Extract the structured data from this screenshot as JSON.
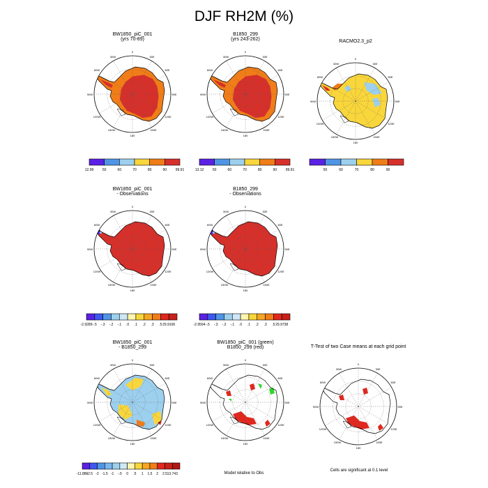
{
  "title": "DJF RH2M (%)",
  "colors": {
    "dark_red": "#d6302b",
    "red": "#e0281f",
    "orange": "#f07d18",
    "yellow": "#f9d63b",
    "light_blue": "#9dd0ee",
    "mid_blue": "#4f95e6",
    "purple": "#5a21e4",
    "green": "#2fd52b"
  },
  "panels": [
    {
      "id": "p1",
      "title": [
        "BW1850_piC_001",
        "(yrs 70-89)"
      ],
      "fill": "climo"
    },
    {
      "id": "p2",
      "title": [
        "B1850_299",
        "(yrs 243-262)"
      ],
      "fill": "climo"
    },
    {
      "id": "p3",
      "title": [
        "RACMO2.3_p2"
      ],
      "fill": "obs"
    },
    {
      "id": "p4",
      "title": [
        "BW1850_piC_001",
        "- Observations"
      ],
      "fill": "bias"
    },
    {
      "id": "p5",
      "title": [
        "B1850_299",
        "- Observations"
      ],
      "fill": "bias"
    },
    {
      "id": "p6",
      "title": [
        "BW1850_piC_001",
        "- B1850_299"
      ],
      "fill": "diff"
    },
    {
      "id": "p7",
      "title": [
        "BW1850_piC_001 (green)",
        "B1850_299 (red)"
      ],
      "fill": "outline"
    },
    {
      "id": "p8",
      "title": [
        "T-Test of two Case means at each grid point"
      ],
      "fill": "outline"
    }
  ],
  "map_labels": {
    "top": "0",
    "left": "90W",
    "right": "90E",
    "bottom": "180",
    "ul30": "30W",
    "ur30": "30E",
    "ul60": "60W",
    "ur60": "60E",
    "ll120": "120W",
    "lr120": "120E",
    "ll150": "150W",
    "lr150": "150E"
  },
  "legends": [
    {
      "id": "l1",
      "labels": [
        "12.99",
        "50",
        "60",
        "70",
        "80",
        "90",
        "99.91"
      ],
      "colors": [
        "#5a21e4",
        "#4f95e6",
        "#9dd0ee",
        "#f9d63b",
        "#f07d18",
        "#d6302b"
      ]
    },
    {
      "id": "l2",
      "labels": [
        "13.12",
        "50",
        "60",
        "70",
        "80",
        "90",
        "99.91"
      ],
      "colors": [
        "#5a21e4",
        "#4f95e6",
        "#9dd0ee",
        "#f9d63b",
        "#f07d18",
        "#d6302b"
      ]
    },
    {
      "id": "l3",
      "labels": [
        "",
        "50",
        "60",
        "70",
        "80",
        "90",
        ""
      ],
      "colors": [
        "#5a21e4",
        "#4f95e6",
        "#9dd0ee",
        "#f9d63b",
        "#f07d18",
        "#d6302b"
      ]
    },
    {
      "id": "l4",
      "labels": [
        "-2.9289",
        "-.5",
        "-.3",
        "-.2",
        "-.1",
        ".0",
        ".1",
        ".2",
        ".3",
        ".5",
        "29.9106"
      ],
      "colors": [
        "#5a21e4",
        "#3d58ee",
        "#4f95e6",
        "#9dd0ee",
        "#cfe8f7",
        "#fff6b0",
        "#f9d63b",
        "#f5a623",
        "#f07d18",
        "#e0281f",
        "#c8211b"
      ]
    },
    {
      "id": "l5",
      "labels": [
        "-2.9594",
        "-.5",
        "-.3",
        "-.2",
        "-.1",
        ".0",
        ".1",
        ".2",
        ".3",
        ".5",
        "29.9738"
      ],
      "colors": [
        "#5a21e4",
        "#3d58ee",
        "#4f95e6",
        "#9dd0ee",
        "#cfe8f7",
        "#fff6b0",
        "#f9d63b",
        "#f5a623",
        "#f07d18",
        "#e0281f",
        "#c8211b"
      ]
    },
    {
      "id": "l6",
      "labels": [
        "-11.886",
        "-2.5",
        "-2",
        "-1.5",
        "-1",
        "-.5",
        "0",
        ".5",
        "1",
        "1.5",
        "2",
        "2.5",
        "13.743"
      ],
      "colors": [
        "#5a21e4",
        "#3d58ee",
        "#4f95e6",
        "#7cb7ee",
        "#9dd0ee",
        "#cfe8f7",
        "#fff6b0",
        "#f9d63b",
        "#f5a623",
        "#f07d18",
        "#e0281f",
        "#c8211b",
        "#b01813"
      ]
    }
  ],
  "footnotes": {
    "model_vs_obs": "Model relative to Obs",
    "significance": "Cells are significant at 0.1 level"
  },
  "chart_data": {
    "type": "heatmap",
    "title": "DJF RH2M (%)",
    "subplots": [
      "BW1850_piC_001 (yrs 70-89)",
      "B1850_299 (yrs 243-262)",
      "RACMO2.3_p2",
      "BW1850_piC_001 - Observations",
      "B1850_299 - Observations",
      "BW1850_piC_001 - B1850_299",
      "BW1850_piC_001 (green) B1850_299 (red)",
      "T-Test of two Case means at each grid point"
    ],
    "colorbars": [
      {
        "min": 12.99,
        "max": 99.91,
        "levels": [
          50,
          60,
          70,
          80,
          90
        ]
      },
      {
        "min": 13.12,
        "max": 99.91,
        "levels": [
          50,
          60,
          70,
          80,
          90
        ]
      },
      {
        "levels": [
          50,
          60,
          70,
          80,
          90
        ]
      },
      {
        "min": -2.9289,
        "max": 29.9106,
        "levels": [
          -0.5,
          -0.3,
          -0.2,
          -0.1,
          0.0,
          0.1,
          0.2,
          0.3,
          0.5
        ]
      },
      {
        "min": -2.9594,
        "max": 29.9738,
        "levels": [
          -0.5,
          -0.3,
          -0.2,
          -0.1,
          0.0,
          0.1,
          0.2,
          0.3,
          0.5
        ]
      },
      {
        "min": -11.886,
        "max": 13.743,
        "levels": [
          -2.5,
          -2,
          -1.5,
          -1,
          -0.5,
          0,
          0.5,
          1,
          1.5,
          2,
          2.5
        ]
      }
    ]
  }
}
